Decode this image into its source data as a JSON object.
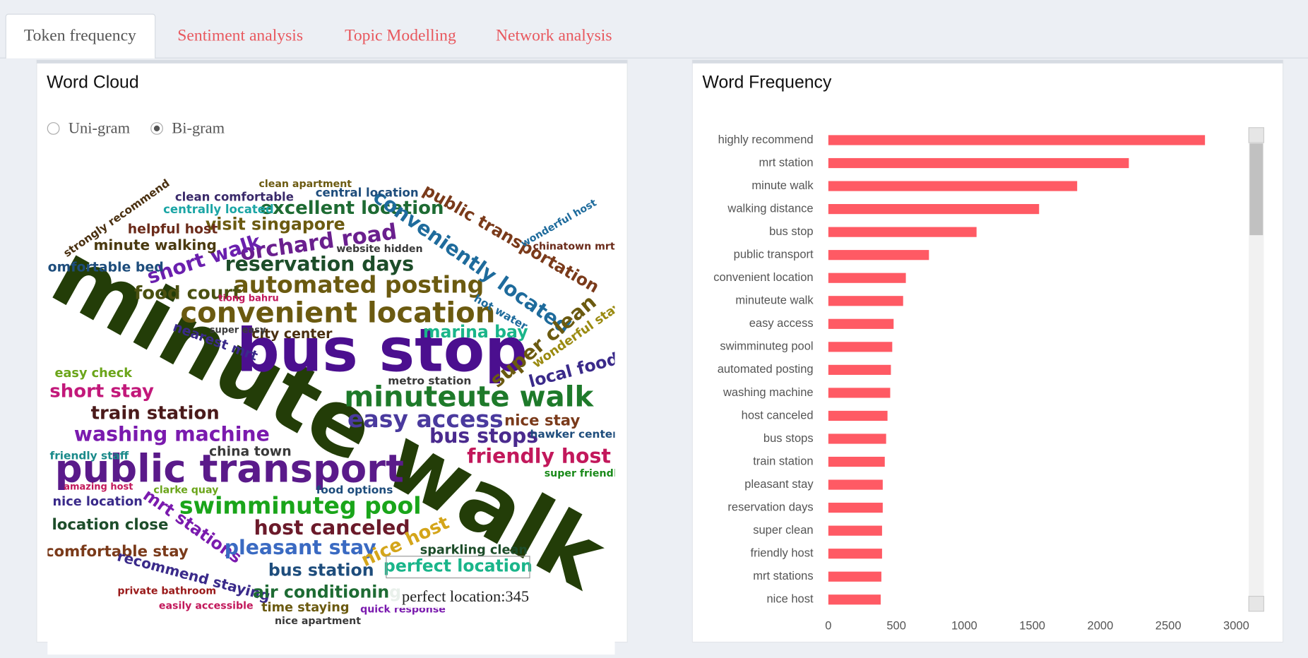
{
  "tabs": [
    "Token frequency",
    "Sentiment analysis",
    "Topic Modelling",
    "Network analysis"
  ],
  "word_cloud": {
    "title": "Word Cloud",
    "options": [
      "Uni-gram",
      "Bi-gram"
    ],
    "words": [
      "minute walk",
      "bus stop",
      "public transport",
      "convenient location",
      "automated posting",
      "minuteute walk",
      "swimminuteg pool",
      "reservation days",
      "orchard road",
      "excellent location",
      "conveniently located",
      "public transportation",
      "short walk",
      "visit singapore",
      "helpful host",
      "minute walking",
      "comfortable bed",
      "food court",
      "centrally located",
      "clean comfortable",
      "central location",
      "strongly recommend",
      "marina bay",
      "super clean",
      "wonderful stay",
      "local food",
      "nearest mrt",
      "city center",
      "short stay",
      "easy check",
      "train station",
      "washing machine",
      "easy access",
      "bus stops",
      "nice stay",
      "friendly host",
      "metro station",
      "china town",
      "hawker center",
      "friendly staff",
      "host canceled",
      "nice location",
      "location close",
      "comfortable stay",
      "mrt stations",
      "pleasant stay",
      "nice host",
      "sparkling clean",
      "bus station",
      "perfect location",
      "recommend staying",
      "air conditioning",
      "time staying",
      "private bathroom",
      "easily accessible",
      "quick response",
      "nice apartment",
      "food options",
      "super friendly",
      "amazing host",
      "clarke quay",
      "chinatown mrt",
      "website hidden",
      "hot water",
      "super easy",
      "clean apartment",
      "tiong bahru",
      "wonderful host"
    ],
    "tooltip": "perfect location:345"
  },
  "chart_data": {
    "type": "bar",
    "orientation": "horizontal",
    "title": "Word Frequency",
    "categories": [
      "highly recommend",
      "mrt station",
      "minute walk",
      "walking distance",
      "bus stop",
      "public transport",
      "convenient location",
      "minuteute walk",
      "easy access",
      "swimminuteg pool",
      "automated posting",
      "washing machine",
      "host canceled",
      "bus stops",
      "train station",
      "pleasant stay",
      "reservation days",
      "super clean",
      "friendly host",
      "mrt stations",
      "nice host"
    ],
    "values": [
      2770,
      2210,
      1830,
      1550,
      1090,
      740,
      570,
      550,
      480,
      470,
      460,
      455,
      435,
      425,
      415,
      400,
      400,
      395,
      395,
      390,
      385
    ],
    "color": "#ff5a64",
    "xlim": [
      0,
      3000
    ],
    "xticks": [
      0,
      500,
      1000,
      1500,
      2000,
      2500,
      3000
    ],
    "grid": false
  }
}
